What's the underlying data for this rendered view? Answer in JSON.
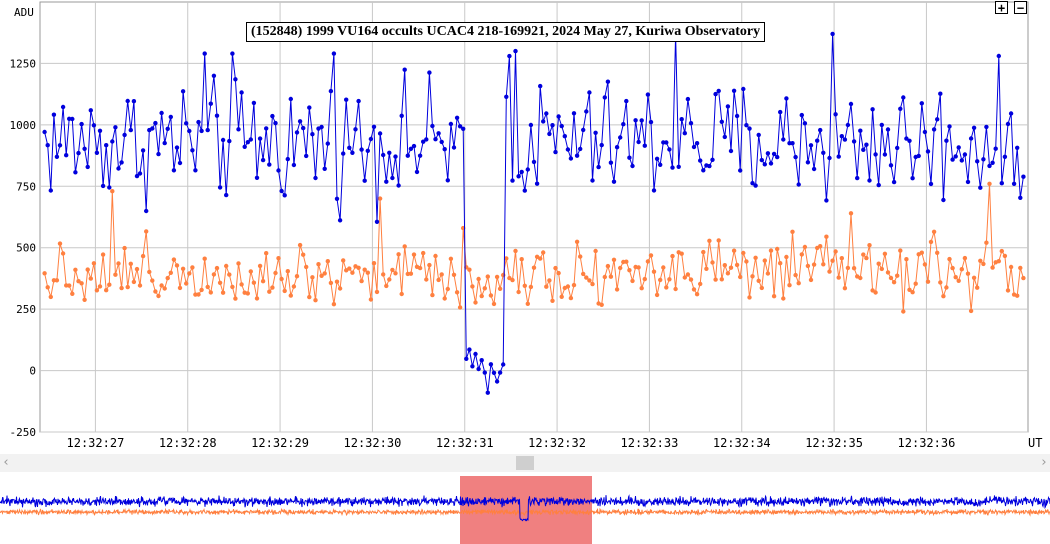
{
  "toolbar": {
    "zoom_in_label": "+",
    "zoom_out_label": "−"
  },
  "colors": {
    "target": "#0000dd",
    "comparison": "#ff8040",
    "selection": "#f08080",
    "grid": "#c8c8c8"
  },
  "chart_data": {
    "type": "line",
    "title": "(152848) 1999 VU164 occults UCAC4 218-169921, 2024 May 27, Kuriwa Observatory",
    "ylabel": "ADU",
    "xlabel": "UT",
    "ylim": [
      -250,
      1500
    ],
    "yticks": [
      -250,
      0,
      250,
      500,
      750,
      1000,
      1250
    ],
    "xrange_seconds": [
      26.4,
      37.1
    ],
    "xticks": [
      {
        "t": 27,
        "label": "12:32:27"
      },
      {
        "t": 28,
        "label": "12:32:28"
      },
      {
        "t": 29,
        "label": "12:32:29"
      },
      {
        "t": 30,
        "label": "12:32:30"
      },
      {
        "t": 31,
        "label": "12:32:31"
      },
      {
        "t": 32,
        "label": "12:32:32"
      },
      {
        "t": 33,
        "label": "12:32:33"
      },
      {
        "t": 34,
        "label": "12:32:34"
      },
      {
        "t": 35,
        "label": "12:32:35"
      },
      {
        "t": 36,
        "label": "12:32:36"
      }
    ],
    "grid": true,
    "frame_rate_per_second": 30,
    "series": [
      {
        "color": "#0000dd",
        "baseline": 930,
        "noise": 150,
        "dip": {
          "start": 31.0,
          "end": 31.45,
          "level": 20,
          "noise": 40
        },
        "peaks": [
          [
            28.2,
            1290
          ],
          [
            28.5,
            1290
          ],
          [
            29.6,
            1290
          ],
          [
            31.55,
            1300
          ],
          [
            31.5,
            1280
          ],
          [
            33.3,
            1370
          ],
          [
            35.0,
            1370
          ],
          [
            31.25,
            -90
          ]
        ]
      },
      {
        "color": "#ff8040",
        "baseline": 400,
        "noise": 80,
        "dip": {
          "start": 30.95,
          "end": 31.4,
          "level": 350,
          "noise": 70
        },
        "peaks": [
          [
            27.2,
            730
          ],
          [
            30.1,
            700
          ],
          [
            31.0,
            580
          ],
          [
            35.2,
            640
          ],
          [
            36.7,
            760
          ]
        ]
      }
    ]
  },
  "overview": {
    "selection_seconds": [
      26.4,
      37.1
    ],
    "total_seconds": [
      12.0,
      88.0
    ],
    "dip_seconds": 31.2
  }
}
